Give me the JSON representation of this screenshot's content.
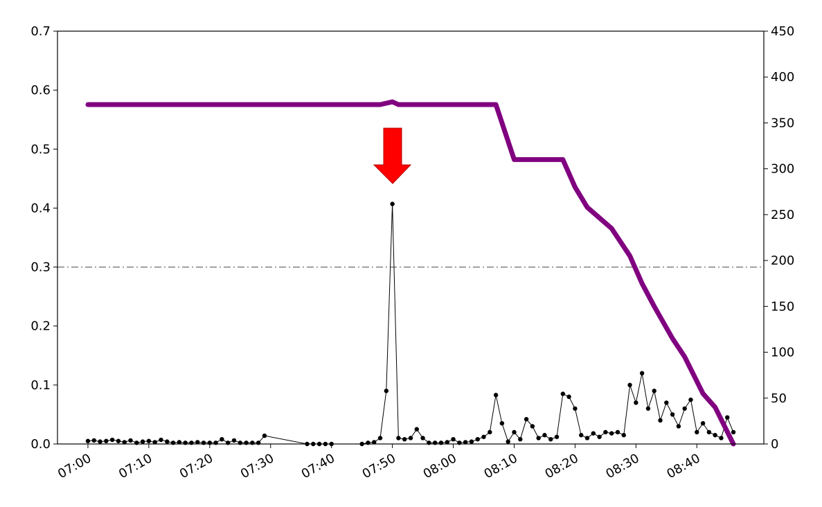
{
  "chart_data": {
    "type": "line",
    "xlim": [
      "06:55",
      "08:51"
    ],
    "xticks": [
      "07:00",
      "07:10",
      "07:20",
      "07:30",
      "07:40",
      "07:50",
      "08:00",
      "08:10",
      "08:20",
      "08:30",
      "08:40"
    ],
    "ylim": [
      0,
      0.7
    ],
    "yticks": [
      0.0,
      0.1,
      0.2,
      0.3,
      0.4,
      0.5,
      0.6,
      0.7
    ],
    "y2lim": [
      0,
      450
    ],
    "y2ticks": [
      0,
      50,
      100,
      150,
      200,
      250,
      300,
      350,
      400,
      450
    ],
    "hline": 0.3,
    "hline_color": "#808080",
    "series": [
      {
        "color": "#000000",
        "axis": "y",
        "markers": true,
        "x": [
          "07:00",
          "07:01",
          "07:02",
          "07:03",
          "07:04",
          "07:05",
          "07:06",
          "07:07",
          "07:08",
          "07:09",
          "07:10",
          "07:11",
          "07:12",
          "07:13",
          "07:14",
          "07:15",
          "07:16",
          "07:17",
          "07:18",
          "07:19",
          "07:20",
          "07:21",
          "07:22",
          "07:23",
          "07:24",
          "07:25",
          "07:26",
          "07:27",
          "07:28",
          "07:29",
          "07:36",
          "07:37",
          "07:38",
          "07:39",
          "07:40",
          "07:45",
          "07:46",
          "07:47",
          "07:48",
          "07:49",
          "07:50",
          "07:51",
          "07:52",
          "07:53",
          "07:54",
          "07:55",
          "07:56",
          "07:57",
          "07:58",
          "07:59",
          "08:00",
          "08:01",
          "08:02",
          "08:03",
          "08:04",
          "08:05",
          "08:06",
          "08:07",
          "08:08",
          "08:09",
          "08:10",
          "08:11",
          "08:12",
          "08:13",
          "08:14",
          "08:15",
          "08:16",
          "08:17",
          "08:18",
          "08:19",
          "08:20",
          "08:21",
          "08:22",
          "08:23",
          "08:24",
          "08:25",
          "08:26",
          "08:27",
          "08:28",
          "08:29",
          "08:30",
          "08:31",
          "08:32",
          "08:33",
          "08:34",
          "08:35",
          "08:36",
          "08:37",
          "08:38",
          "08:39",
          "08:40",
          "08:41",
          "08:42",
          "08:43",
          "08:44",
          "08:45",
          "08:46"
        ],
        "values": [
          0.005,
          0.006,
          0.004,
          0.005,
          0.007,
          0.005,
          0.003,
          0.006,
          0.002,
          0.004,
          0.005,
          0.003,
          0.007,
          0.004,
          0.002,
          0.003,
          0.002,
          0.002,
          0.003,
          0.002,
          0.002,
          0.002,
          0.008,
          0.002,
          0.006,
          0.002,
          0.002,
          0.002,
          0.002,
          0.014,
          0,
          0,
          0,
          0,
          0,
          0,
          0.002,
          0.003,
          0.01,
          0.09,
          0.407,
          0.01,
          0.008,
          0.01,
          0.025,
          0.01,
          0.002,
          0.002,
          0.002,
          0.003,
          0.008,
          0.002,
          0.003,
          0.004,
          0.008,
          0.012,
          0.02,
          0.083,
          0.035,
          0.004,
          0.02,
          0.008,
          0.042,
          0.03,
          0.01,
          0.015,
          0.008,
          0.012,
          0.085,
          0.08,
          0.06,
          0.015,
          0.01,
          0.018,
          0.012,
          0.02,
          0.018,
          0.02,
          0.015,
          0.1,
          0.07,
          0.12,
          0.06,
          0.09,
          0.04,
          0.07,
          0.05,
          0.03,
          0.06,
          0.075,
          0.02,
          0.035,
          0.02,
          0.015,
          0.01,
          0.045,
          0.02
        ]
      },
      {
        "color": "#800080",
        "axis": "y2",
        "markers": false,
        "x": [
          "07:00",
          "07:10",
          "07:20",
          "07:30",
          "07:36",
          "07:40",
          "07:48",
          "07:50",
          "07:51",
          "08:00",
          "08:07",
          "08:10",
          "08:18",
          "08:20",
          "08:22",
          "08:26",
          "08:29",
          "08:31",
          "08:33",
          "08:36",
          "08:38",
          "08:41",
          "08:43",
          "08:46"
        ],
        "values": [
          370,
          370,
          370,
          370,
          370,
          370,
          370,
          373,
          370,
          370,
          370,
          310,
          310,
          280,
          258,
          235,
          205,
          175,
          150,
          115,
          95,
          55,
          40,
          0
        ]
      }
    ]
  }
}
